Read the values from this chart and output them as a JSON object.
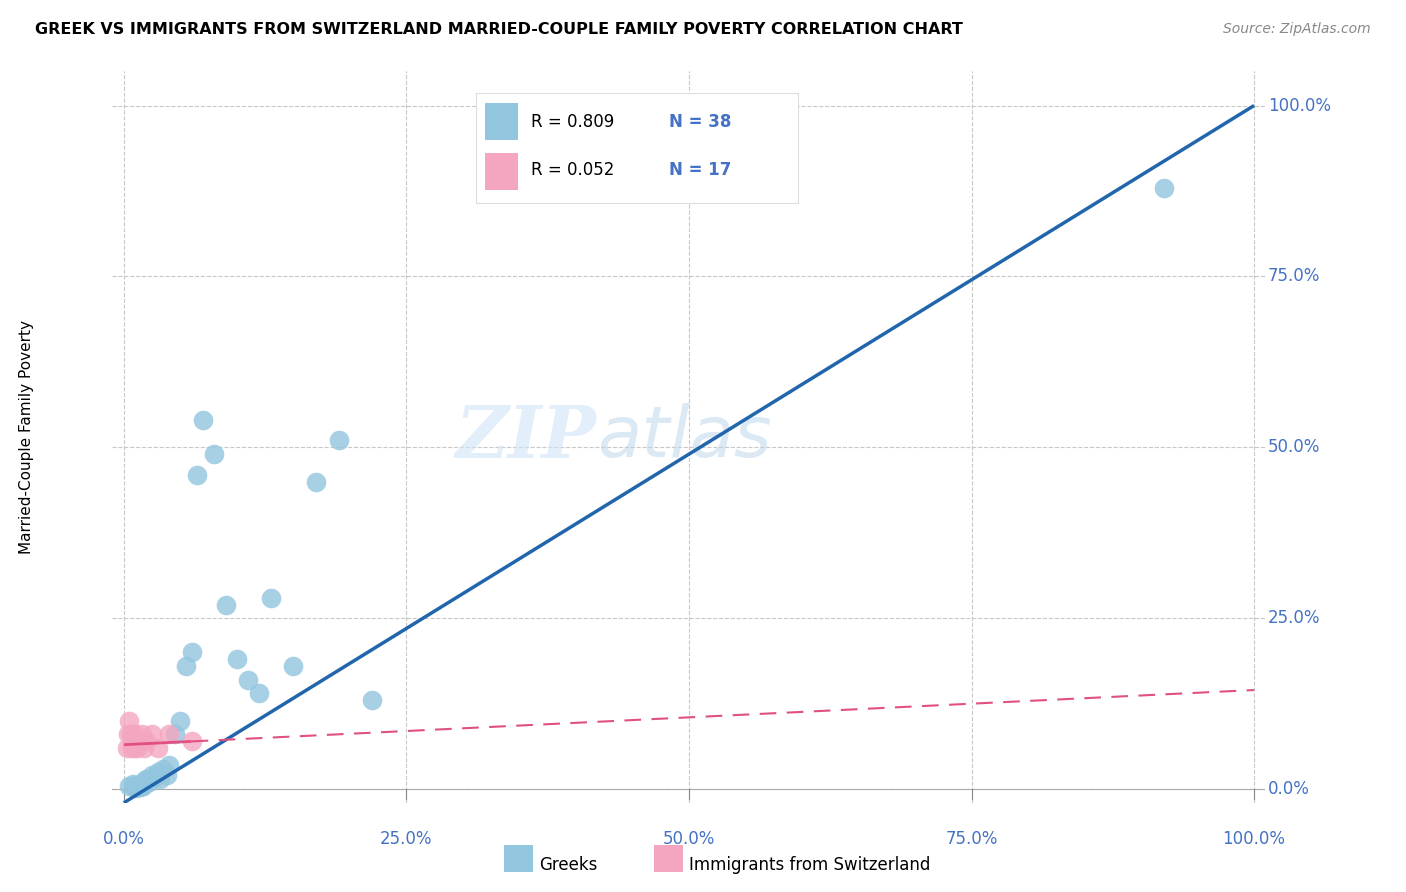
{
  "title": "GREEK VS IMMIGRANTS FROM SWITZERLAND MARRIED-COUPLE FAMILY POVERTY CORRELATION CHART",
  "source": "Source: ZipAtlas.com",
  "ylabel": "Married-Couple Family Poverty",
  "watermark_zip": "ZIP",
  "watermark_atlas": "atlas",
  "greek_R": 0.809,
  "greek_N": 38,
  "swiss_R": 0.052,
  "swiss_N": 17,
  "greek_color": "#92c5de",
  "swiss_color": "#f4a6c0",
  "greek_line_color": "#2166ac",
  "swiss_line_solid_color": "#d6604d",
  "swiss_line_dashed_color": "#d6604d",
  "greek_scatter_x": [
    0.005,
    0.008,
    0.009,
    0.01,
    0.011,
    0.012,
    0.013,
    0.014,
    0.015,
    0.016,
    0.017,
    0.018,
    0.02,
    0.022,
    0.025,
    0.028,
    0.03,
    0.032,
    0.035,
    0.038,
    0.04,
    0.045,
    0.05,
    0.055,
    0.06,
    0.065,
    0.07,
    0.08,
    0.09,
    0.1,
    0.11,
    0.12,
    0.13,
    0.15,
    0.17,
    0.19,
    0.22,
    0.92
  ],
  "greek_scatter_y": [
    0.005,
    0.008,
    0.003,
    0.005,
    0.002,
    0.004,
    0.006,
    0.003,
    0.008,
    0.005,
    0.004,
    0.012,
    0.015,
    0.01,
    0.02,
    0.018,
    0.025,
    0.015,
    0.03,
    0.02,
    0.035,
    0.08,
    0.1,
    0.18,
    0.2,
    0.46,
    0.54,
    0.49,
    0.27,
    0.19,
    0.16,
    0.14,
    0.28,
    0.18,
    0.45,
    0.51,
    0.13,
    0.88
  ],
  "swiss_scatter_x": [
    0.003,
    0.004,
    0.005,
    0.006,
    0.007,
    0.008,
    0.009,
    0.01,
    0.012,
    0.014,
    0.016,
    0.018,
    0.02,
    0.025,
    0.03,
    0.04,
    0.06
  ],
  "swiss_scatter_y": [
    0.06,
    0.08,
    0.1,
    0.08,
    0.06,
    0.08,
    0.06,
    0.08,
    0.06,
    0.07,
    0.08,
    0.06,
    0.07,
    0.08,
    0.06,
    0.08,
    0.07
  ],
  "ytick_labels": [
    "0.0%",
    "25.0%",
    "50.0%",
    "75.0%",
    "100.0%"
  ],
  "ytick_values": [
    0.0,
    0.25,
    0.5,
    0.75,
    1.0
  ],
  "xtick_labels": [
    "0.0%",
    "25.0%",
    "50.0%",
    "75.0%",
    "100.0%"
  ],
  "xtick_values": [
    0.0,
    0.25,
    0.5,
    0.75,
    1.0
  ],
  "axis_color": "#4472c4",
  "grid_color": "#c8c8c8",
  "background_color": "#ffffff",
  "legend_label_greek": "Greeks",
  "legend_label_swiss": "Immigrants from Switzerland"
}
